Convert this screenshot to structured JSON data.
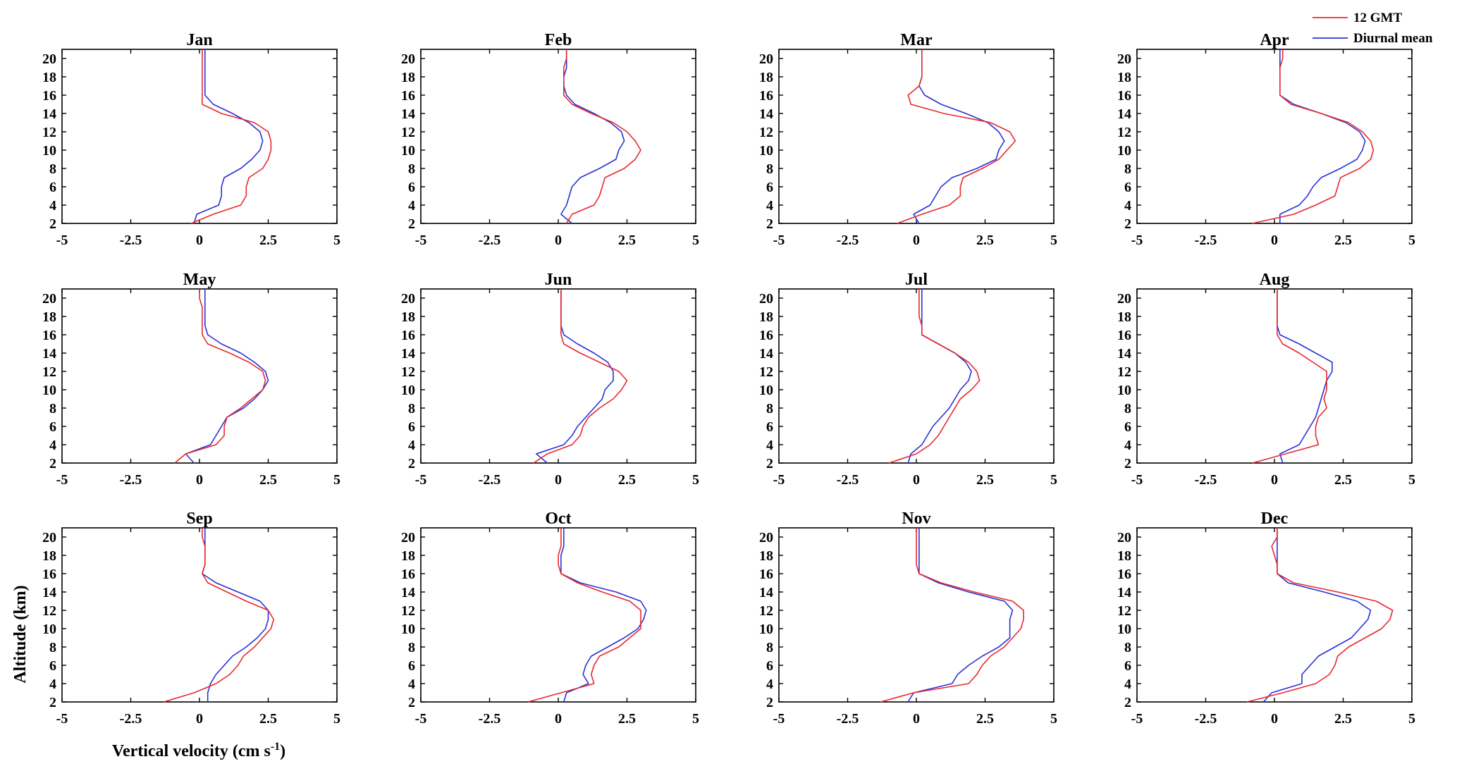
{
  "chart_data": {
    "type": "line",
    "orientation": "profile (x = vertical velocity, y = altitude)",
    "xlabel": "Vertical velocity (cm s",
    "xlabel_superscript": "-1",
    "xlabel_close": ")",
    "ylabel": "Altitude (km)",
    "xlim": [
      -5,
      5
    ],
    "ylim": [
      2,
      21
    ],
    "xticks": [
      -5,
      -2.5,
      0,
      2.5,
      5
    ],
    "xtick_labels": [
      "-5",
      "-2.5",
      "0",
      "2.5",
      "5"
    ],
    "yticks": [
      2,
      4,
      6,
      8,
      10,
      12,
      14,
      16,
      18,
      20
    ],
    "ytick_labels": [
      "2",
      "4",
      "6",
      "8",
      "10",
      "12",
      "14",
      "16",
      "18",
      "20"
    ],
    "grid": false,
    "legend_position": "top-right",
    "legend": [
      {
        "name": "12 GMT",
        "color": "#e8282d"
      },
      {
        "name": "Diurnal mean",
        "color": "#2832d6"
      }
    ],
    "altitudes": [
      2,
      3,
      4,
      5,
      6,
      7,
      8,
      9,
      10,
      11,
      12,
      13,
      14,
      15,
      16,
      17,
      18,
      19,
      20,
      21
    ],
    "panels": [
      {
        "title": "Jan",
        "red": [
          -0.3,
          0.5,
          1.5,
          1.7,
          1.7,
          1.8,
          2.3,
          2.5,
          2.6,
          2.6,
          2.5,
          2.0,
          0.8,
          0.1,
          0.1,
          0.1,
          0.1,
          0.1,
          0.1,
          0.1
        ],
        "blue": [
          -0.2,
          -0.1,
          0.7,
          0.8,
          0.8,
          0.9,
          1.5,
          1.9,
          2.2,
          2.3,
          2.2,
          1.8,
          1.2,
          0.5,
          0.2,
          0.2,
          0.2,
          0.2,
          0.2,
          0.2
        ]
      },
      {
        "title": "Feb",
        "red": [
          0.3,
          0.5,
          1.3,
          1.5,
          1.6,
          1.7,
          2.4,
          2.8,
          3.0,
          2.8,
          2.5,
          2.0,
          1.2,
          0.5,
          0.2,
          0.2,
          0.2,
          0.2,
          0.3,
          0.3
        ],
        "blue": [
          0.5,
          0.1,
          0.3,
          0.4,
          0.5,
          0.8,
          1.5,
          2.1,
          2.2,
          2.4,
          2.3,
          1.9,
          1.3,
          0.6,
          0.3,
          0.2,
          0.2,
          0.3,
          0.3,
          0.3
        ]
      },
      {
        "title": "Mar",
        "red": [
          -0.7,
          0.2,
          1.2,
          1.6,
          1.6,
          1.7,
          2.4,
          3.0,
          3.3,
          3.6,
          3.4,
          2.7,
          1.0,
          -0.2,
          -0.3,
          0.1,
          0.2,
          0.2,
          0.2,
          0.2
        ],
        "blue": [
          0.1,
          -0.1,
          0.5,
          0.7,
          0.9,
          1.3,
          2.2,
          2.9,
          3.0,
          3.2,
          3.0,
          2.6,
          1.8,
          0.9,
          0.3,
          0.1,
          0.2,
          0.2,
          0.2,
          0.2
        ]
      },
      {
        "title": "Apr",
        "red": [
          -0.8,
          0.7,
          1.5,
          2.2,
          2.3,
          2.4,
          3.1,
          3.5,
          3.6,
          3.5,
          3.2,
          2.7,
          1.7,
          0.6,
          0.2,
          0.2,
          0.2,
          0.2,
          0.3,
          0.3
        ],
        "blue": [
          0.2,
          0.2,
          0.9,
          1.2,
          1.4,
          1.7,
          2.4,
          3.0,
          3.2,
          3.3,
          3.1,
          2.6,
          1.7,
          0.7,
          0.2,
          0.2,
          0.2,
          0.2,
          0.2,
          0.2
        ]
      },
      {
        "title": "May",
        "red": [
          -0.9,
          -0.5,
          0.6,
          0.9,
          0.9,
          1.0,
          1.5,
          1.9,
          2.3,
          2.4,
          2.3,
          1.8,
          1.1,
          0.3,
          0.1,
          0.1,
          0.1,
          0.1,
          0.0,
          0.0
        ],
        "blue": [
          -0.2,
          -0.5,
          0.4,
          0.6,
          0.8,
          1.0,
          1.6,
          2.0,
          2.3,
          2.5,
          2.4,
          2.0,
          1.5,
          0.8,
          0.3,
          0.2,
          0.2,
          0.2,
          0.2,
          0.2
        ]
      },
      {
        "title": "Jun",
        "red": [
          -0.9,
          -0.4,
          0.5,
          0.8,
          0.9,
          1.1,
          1.5,
          2.0,
          2.3,
          2.5,
          2.2,
          1.5,
          0.8,
          0.2,
          0.1,
          0.1,
          0.1,
          0.1,
          0.1,
          0.1
        ],
        "blue": [
          -0.4,
          -0.8,
          0.2,
          0.5,
          0.7,
          1.0,
          1.3,
          1.6,
          1.7,
          2.0,
          2.0,
          1.8,
          1.3,
          0.7,
          0.2,
          0.1,
          0.1,
          0.1,
          0.1,
          0.1
        ]
      },
      {
        "title": "Jul",
        "red": [
          -1.0,
          0.0,
          0.5,
          0.8,
          1.0,
          1.2,
          1.4,
          1.6,
          2.0,
          2.3,
          2.2,
          1.9,
          1.4,
          0.8,
          0.2,
          0.2,
          0.1,
          0.1,
          0.1,
          0.1
        ],
        "blue": [
          -0.3,
          -0.2,
          0.2,
          0.4,
          0.6,
          0.9,
          1.2,
          1.4,
          1.6,
          1.9,
          2.0,
          1.8,
          1.4,
          0.8,
          0.2,
          0.2,
          0.2,
          0.2,
          0.2,
          0.2
        ]
      },
      {
        "title": "Aug",
        "red": [
          -0.8,
          0.4,
          1.6,
          1.5,
          1.5,
          1.6,
          1.9,
          1.8,
          1.9,
          1.9,
          1.9,
          1.4,
          0.9,
          0.3,
          0.1,
          0.1,
          0.1,
          0.1,
          0.1,
          0.1
        ],
        "blue": [
          0.3,
          0.2,
          0.9,
          1.1,
          1.3,
          1.5,
          1.6,
          1.7,
          1.8,
          1.9,
          2.1,
          2.1,
          1.5,
          0.9,
          0.2,
          0.1,
          0.1,
          0.1,
          0.1,
          0.1
        ]
      },
      {
        "title": "Sep",
        "red": [
          -1.3,
          -0.2,
          0.6,
          1.1,
          1.4,
          1.6,
          2.0,
          2.3,
          2.6,
          2.7,
          2.5,
          1.7,
          1.0,
          0.3,
          0.1,
          0.2,
          0.2,
          0.2,
          0.1,
          0.1
        ],
        "blue": [
          0.3,
          0.3,
          0.4,
          0.6,
          0.9,
          1.2,
          1.7,
          2.1,
          2.4,
          2.5,
          2.5,
          2.2,
          1.4,
          0.6,
          0.1,
          0.2,
          0.2,
          0.2,
          0.2,
          0.2
        ]
      },
      {
        "title": "Oct",
        "red": [
          -1.1,
          0.1,
          1.3,
          1.2,
          1.3,
          1.5,
          2.2,
          2.6,
          3.0,
          3.0,
          3.0,
          2.6,
          1.6,
          0.7,
          0.1,
          0.0,
          0.0,
          0.1,
          0.1,
          0.1
        ],
        "blue": [
          0.2,
          0.3,
          1.1,
          0.9,
          1.0,
          1.2,
          1.8,
          2.4,
          2.9,
          3.1,
          3.2,
          3.0,
          2.1,
          0.8,
          0.1,
          0.1,
          0.1,
          0.2,
          0.2,
          0.2
        ]
      },
      {
        "title": "Nov",
        "red": [
          -1.3,
          -0.1,
          1.9,
          2.2,
          2.4,
          2.7,
          3.2,
          3.5,
          3.8,
          3.9,
          3.9,
          3.5,
          2.1,
          0.9,
          0.1,
          0.0,
          0.0,
          0.0,
          0.0,
          0.0
        ],
        "blue": [
          -0.3,
          -0.1,
          1.3,
          1.5,
          1.9,
          2.4,
          3.0,
          3.4,
          3.4,
          3.4,
          3.5,
          3.2,
          1.9,
          0.8,
          0.1,
          0.1,
          0.1,
          0.1,
          0.1,
          0.1
        ]
      },
      {
        "title": "Dec",
        "red": [
          -1.0,
          0.3,
          1.5,
          2.0,
          2.2,
          2.3,
          2.7,
          3.3,
          3.9,
          4.2,
          4.3,
          3.7,
          2.3,
          0.7,
          0.1,
          0.1,
          0.0,
          -0.1,
          0.1,
          0.1
        ],
        "blue": [
          -0.4,
          -0.1,
          1.0,
          1.0,
          1.3,
          1.6,
          2.2,
          2.8,
          3.1,
          3.4,
          3.5,
          3.0,
          1.8,
          0.5,
          0.1,
          0.1,
          0.1,
          0.1,
          0.1,
          0.1
        ]
      }
    ]
  }
}
